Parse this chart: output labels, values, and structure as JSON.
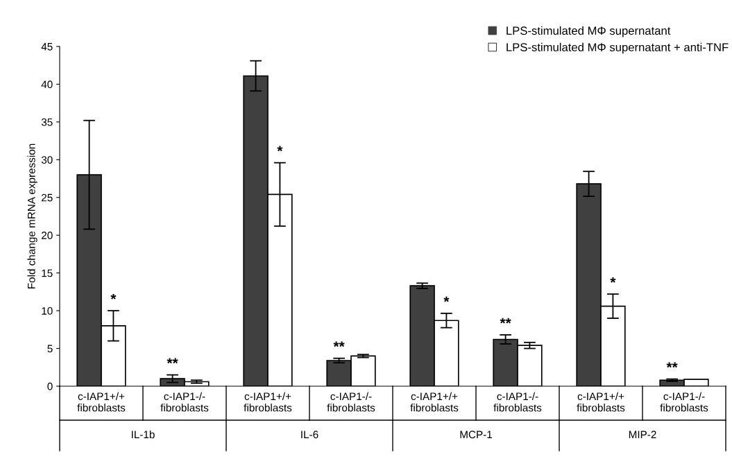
{
  "chart_data": {
    "type": "bar",
    "ylabel": "Fold change mRNA expression",
    "categories": [
      "c-IAP1+/+\nfibroblasts",
      "c-IAP1-/-\nfibroblasts",
      "c-IAP1+/+\nfibroblasts",
      "c-IAP1-/-\nfibroblasts",
      "c-IAP1+/+\nfibroblasts",
      "c-IAP1-/-\nfibroblasts",
      "c-IAP1+/+\nfibroblasts",
      "c-IAP1-/-\nfibroblasts"
    ],
    "series": [
      {
        "name": "LPS-stimulated MΦ supernatant",
        "color": "#404040",
        "values": [
          28.0,
          1.0,
          41.1,
          3.4,
          13.3,
          6.2,
          26.8,
          0.8
        ],
        "errors": [
          7.2,
          0.5,
          2.0,
          0.3,
          0.35,
          0.6,
          1.65,
          0.15
        ],
        "value_labels": [
          null,
          "**",
          null,
          "**",
          null,
          "**",
          null,
          "**"
        ]
      },
      {
        "name": "LPS-stimulated MΦ supernatant + anti-TNF",
        "color": "#ffffff",
        "values": [
          8.0,
          0.6,
          25.4,
          4.0,
          8.7,
          5.4,
          10.6,
          0.9
        ],
        "errors": [
          2.0,
          0.2,
          4.2,
          0.2,
          0.95,
          0.4,
          1.6,
          null
        ],
        "value_labels": [
          "*",
          null,
          "*",
          null,
          "*",
          null,
          "*",
          null
        ]
      }
    ],
    "annotations": [
      "IL-1b",
      "IL-6",
      "MCP-1",
      "MIP-2"
    ],
    "ylim": [
      0,
      45
    ],
    "yticks": [
      0,
      5,
      10,
      15,
      20,
      25,
      30,
      35,
      40,
      45
    ],
    "grid": false,
    "legend": "top right"
  }
}
